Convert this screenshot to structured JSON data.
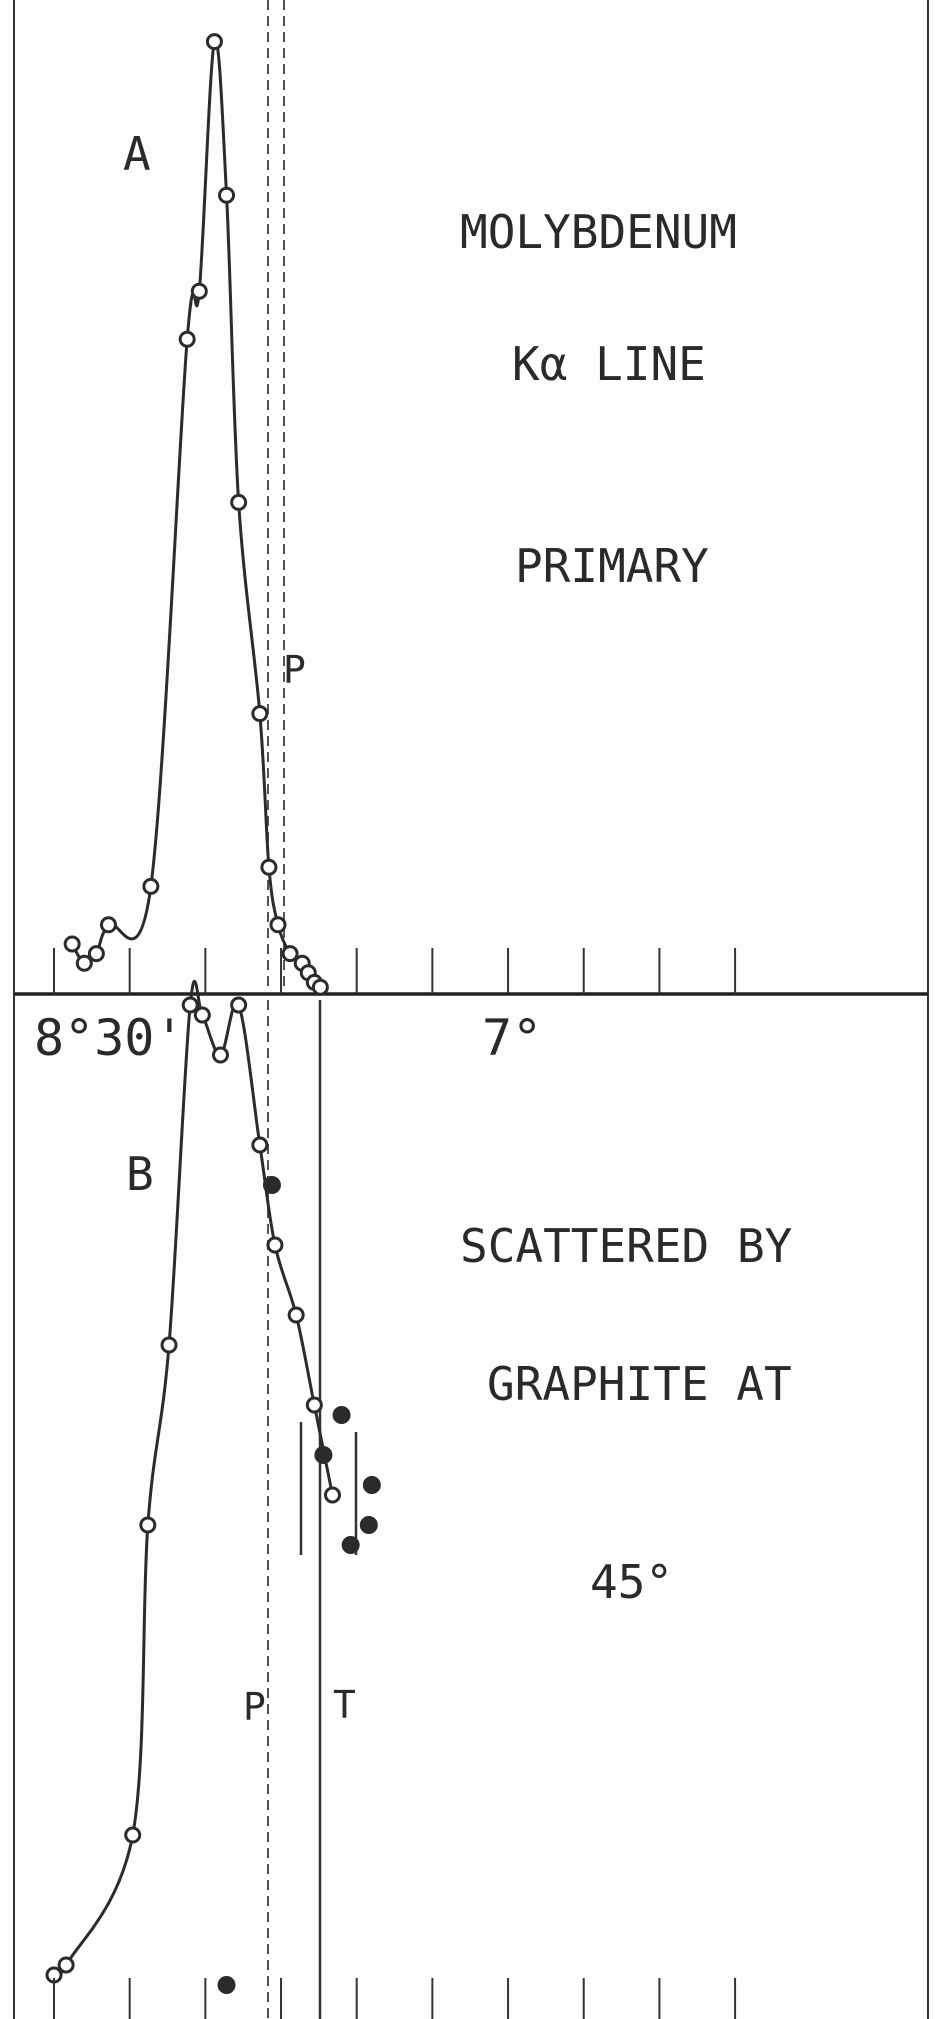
{
  "chart_data": [
    {
      "type": "line",
      "panel": "A",
      "annotations": [
        "MOLYBDENUM",
        "Kα LINE",
        "PRIMARY"
      ],
      "peak_marker": "P",
      "x_unit": "degrees",
      "x_tick_labels": [
        "8°30'",
        "7°"
      ],
      "series": [
        {
          "style": "open-circles-with-curve",
          "x": [
            8.44,
            8.4,
            8.36,
            8.32,
            8.18,
            8.06,
            8.02,
            7.97,
            7.93,
            7.89,
            7.82,
            7.79,
            7.76,
            7.72,
            7.68,
            7.66,
            7.64,
            7.62
          ],
          "y": [
            0.05,
            0.03,
            0.04,
            0.07,
            0.11,
            0.68,
            0.73,
            0.99,
            0.83,
            0.51,
            0.29,
            0.13,
            0.07,
            0.04,
            0.03,
            0.02,
            0.01,
            0.005
          ]
        }
      ]
    },
    {
      "type": "line",
      "panel": "B",
      "annotations": [
        "SCATTERED BY",
        "GRAPHITE AT",
        "45°"
      ],
      "line_markers": [
        "P",
        "T"
      ],
      "x_unit": "degrees",
      "series": [
        {
          "style": "open-circles-with-curve",
          "x": [
            8.5,
            8.46,
            8.24,
            8.19,
            8.12,
            8.05,
            8.01,
            7.95,
            7.89,
            7.82,
            7.77,
            7.7,
            7.64,
            7.58
          ],
          "y": [
            0.03,
            0.04,
            0.17,
            0.48,
            0.66,
            1.0,
            0.99,
            0.95,
            1.0,
            0.86,
            0.76,
            0.69,
            0.6,
            0.51
          ]
        },
        {
          "style": "filled-circles",
          "x": [
            7.93,
            7.78,
            7.61,
            7.55,
            7.45,
            7.46,
            7.52
          ],
          "y": [
            0.02,
            0.82,
            0.55,
            0.59,
            0.52,
            0.48,
            0.46
          ]
        }
      ]
    }
  ],
  "panel_labels": {
    "a": "A",
    "b": "B"
  },
  "marker_labels": {
    "p_top": "P",
    "p_bottom": "P",
    "t": "T"
  }
}
